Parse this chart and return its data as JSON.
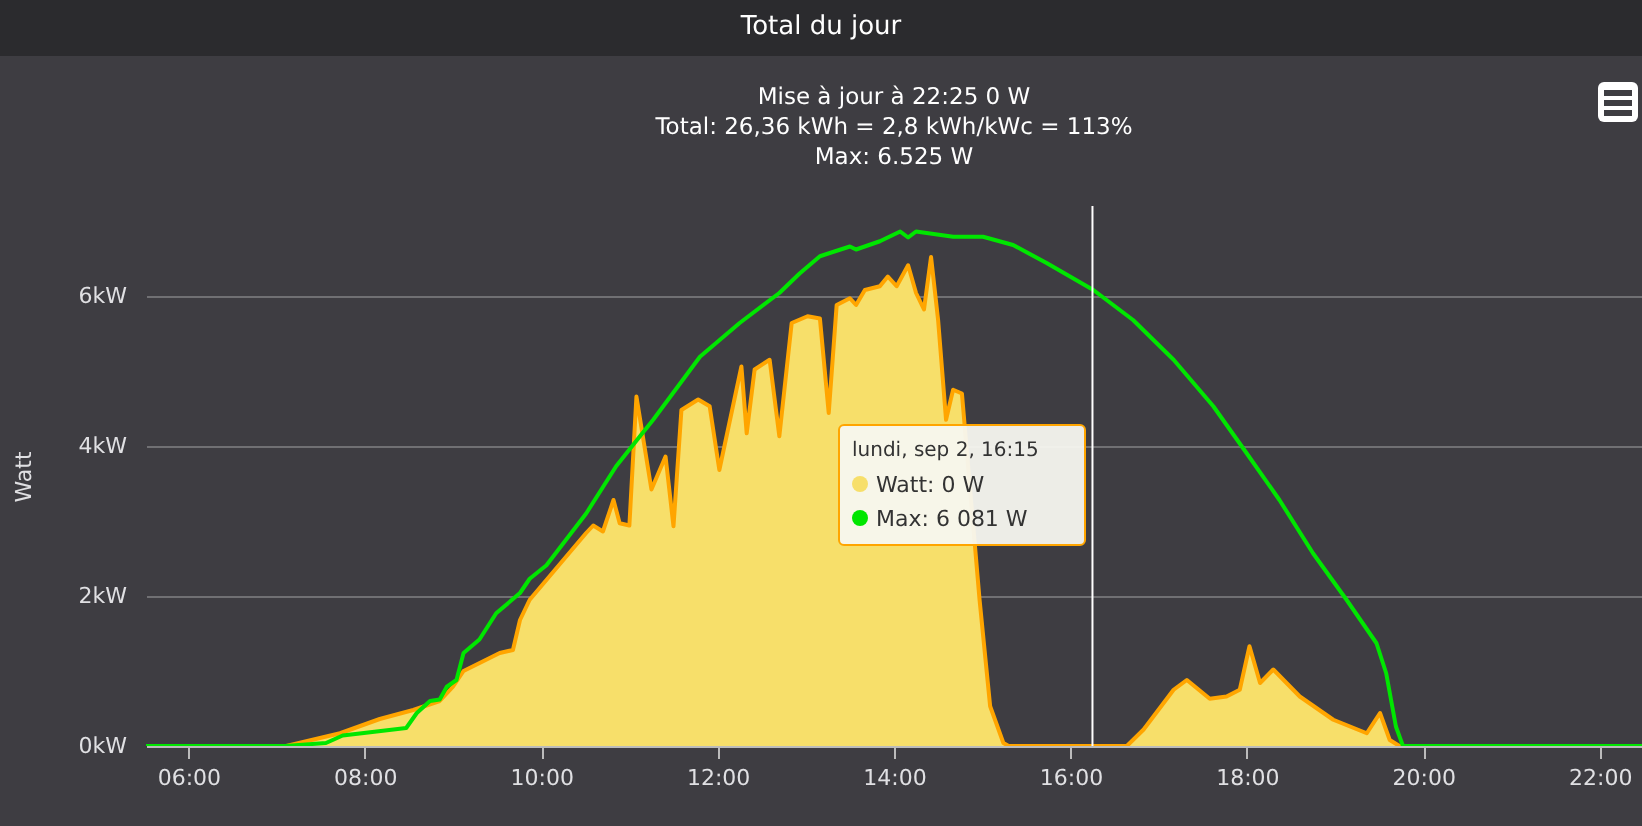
{
  "chart_data": {
    "type": "area",
    "title": "Total du jour",
    "subtitle": "Mise à jour à 22:25 0 W\nTotal: 26,36 kWh = 2,8 kWh/kWc = 113%\nMax: 6.525 W",
    "ylabel": "Watt",
    "annotations": [
      "lundi, sep 2, 16:15",
      "Watt: 0 W",
      "Max: 6 081 W"
    ],
    "xlim": [
      5.52,
      22.48
    ],
    "xticks": [
      {
        "value": 6,
        "label": "06:00"
      },
      {
        "value": 8,
        "label": "08:00"
      },
      {
        "value": 10,
        "label": "10:00"
      },
      {
        "value": 12,
        "label": "12:00"
      },
      {
        "value": 14,
        "label": "14:00"
      },
      {
        "value": 16,
        "label": "16:00"
      },
      {
        "value": 18,
        "label": "18:00"
      },
      {
        "value": 20,
        "label": "20:00"
      },
      {
        "value": 22,
        "label": "22:00"
      }
    ],
    "ylim": [
      0,
      7.2
    ],
    "yticks": [
      {
        "value": 0,
        "label": "0kW"
      },
      {
        "value": 2,
        "label": "2kW"
      },
      {
        "value": 4,
        "label": "4kW"
      },
      {
        "value": 6,
        "label": "6kW"
      }
    ],
    "grid": "y",
    "ref_lines": [
      {
        "axis": "x",
        "value": 16.25,
        "color": "#ffffff"
      }
    ],
    "series": [
      {
        "color": "#f7df6a",
        "x": [
          5.52,
          7.11,
          7.72,
          8.17,
          8.55,
          8.85,
          9.0,
          9.12,
          9.53,
          9.68,
          9.76,
          9.87,
          10.51,
          10.59,
          10.7,
          10.82,
          10.89,
          11.0,
          11.08,
          11.25,
          11.41,
          11.5,
          11.59,
          11.78,
          11.91,
          12.02,
          12.27,
          12.33,
          12.42,
          12.59,
          12.7,
          12.84,
          13.02,
          13.16,
          13.26,
          13.35,
          13.5,
          13.57,
          13.67,
          13.84,
          13.93,
          14.03,
          14.16,
          14.25,
          14.34,
          14.42,
          14.5,
          14.59,
          14.67,
          14.77,
          14.86,
          14.97,
          15.09,
          15.24,
          15.3,
          16.64,
          16.83,
          17.17,
          17.32,
          17.58,
          17.77,
          17.92,
          18.03,
          18.15,
          18.3,
          18.6,
          18.98,
          19.36,
          19.51,
          19.62,
          19.73,
          22.48
        ],
        "values": [
          0,
          0,
          0.17,
          0.36,
          0.48,
          0.6,
          0.79,
          1.0,
          1.24,
          1.28,
          1.68,
          1.95,
          2.84,
          2.94,
          2.86,
          3.28,
          2.97,
          2.94,
          4.66,
          3.42,
          3.86,
          2.93,
          4.48,
          4.62,
          4.53,
          3.68,
          5.06,
          4.17,
          5.02,
          5.15,
          4.13,
          5.64,
          5.73,
          5.7,
          4.44,
          5.88,
          5.97,
          5.88,
          6.08,
          6.13,
          6.26,
          6.13,
          6.41,
          6.04,
          5.82,
          6.52,
          5.68,
          4.35,
          4.75,
          4.7,
          null,
          1.95,
          0.53,
          0.04,
          0,
          0,
          0.22,
          0.75,
          0.88,
          0.63,
          0.66,
          0.75,
          1.33,
          0.84,
          1.02,
          0.66,
          0.35,
          0.17,
          0.44,
          0.08,
          0,
          0
        ]
      },
      {
        "type": "line",
        "color": "#00e600",
        "x": [
          5.52,
          7.1,
          7.56,
          7.75,
          8.47,
          8.59,
          8.74,
          8.85,
          8.93,
          9.04,
          9.12,
          9.3,
          9.49,
          9.76,
          9.87,
          10.06,
          10.51,
          10.85,
          11.12,
          11.27,
          11.8,
          12.25,
          12.7,
          12.93,
          13.16,
          13.5,
          13.57,
          13.84,
          14.07,
          14.16,
          14.25,
          14.67,
          15.01,
          15.35,
          15.73,
          16.26,
          16.71,
          17.17,
          17.62,
          18.0,
          18.37,
          18.75,
          19.13,
          19.47,
          19.58,
          19.69,
          19.77,
          22.48
        ],
        "values": [
          0,
          0,
          0.04,
          0.14,
          0.24,
          0.44,
          0.6,
          0.62,
          0.79,
          0.88,
          1.24,
          1.42,
          1.77,
          2.04,
          2.23,
          2.41,
          3.1,
          3.73,
          4.13,
          4.35,
          5.19,
          5.64,
          6.04,
          6.3,
          6.53,
          6.66,
          6.62,
          6.73,
          6.86,
          6.78,
          6.86,
          6.79,
          6.79,
          6.68,
          6.44,
          6.08,
          5.68,
          5.15,
          4.53,
          3.9,
          3.28,
          2.57,
          1.95,
          1.37,
          0.97,
          0.26,
          0,
          0
        ]
      }
    ]
  }
}
